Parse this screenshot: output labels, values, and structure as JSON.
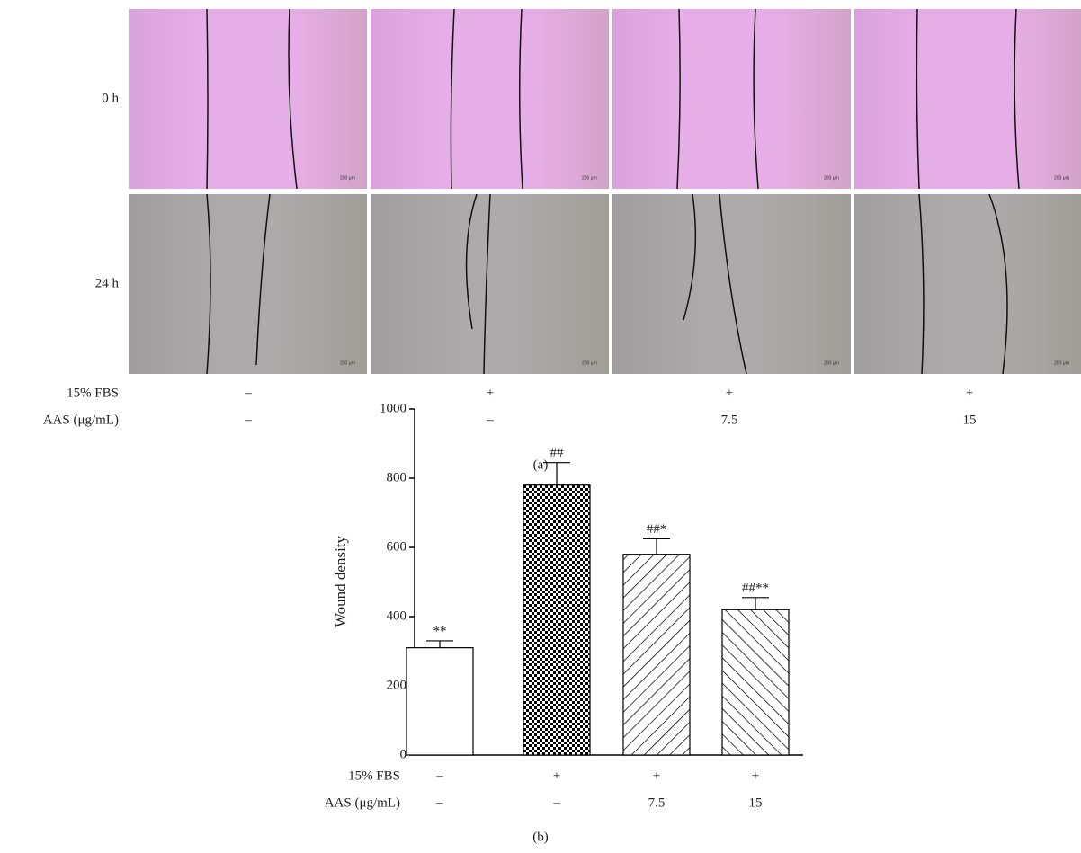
{
  "panel_a": {
    "row_labels": [
      "0 h",
      "24 h"
    ],
    "scale_bar": "200 μm",
    "conditions": [
      {
        "label": "15% FBS",
        "values": [
          "–",
          "+",
          "+",
          "+"
        ]
      },
      {
        "label": "AAS (μg/mL)",
        "values": [
          "–",
          "–",
          "7.5",
          "15"
        ]
      }
    ],
    "caption": "(a)"
  },
  "chart_data": {
    "type": "bar",
    "ylabel": "Wound density",
    "categories": [
      null,
      null,
      null,
      null
    ],
    "values": [
      310,
      780,
      580,
      420
    ],
    "errors": [
      20,
      65,
      45,
      35
    ],
    "annotations": [
      "**",
      "##",
      "##*",
      "##**"
    ],
    "fills": [
      "white",
      "checker",
      "hatch-forward",
      "hatch-backward"
    ],
    "ylim": [
      0,
      1000
    ],
    "yticks": [
      0,
      200,
      400,
      600,
      800,
      1000
    ],
    "conditions": [
      {
        "label": "15% FBS",
        "values": [
          "–",
          "+",
          "+",
          "+"
        ]
      },
      {
        "label": "AAS (μg/mL)",
        "values": [
          "–",
          "–",
          "7.5",
          "15"
        ]
      }
    ],
    "caption": "(b)"
  }
}
